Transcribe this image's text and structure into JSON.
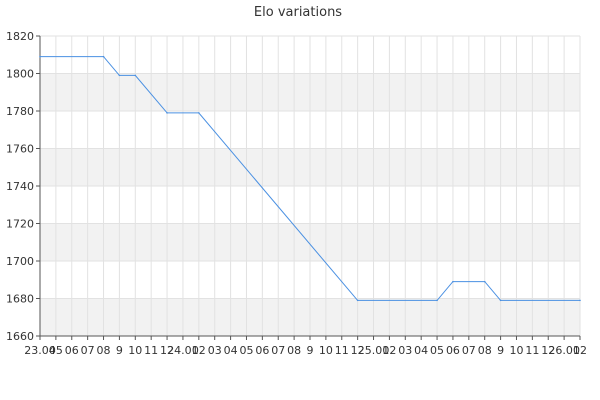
{
  "chart_data": {
    "type": "line",
    "title": "Elo variations",
    "xlabel": "",
    "ylabel": "",
    "ylim": [
      1660,
      1820
    ],
    "yticks": [
      1660,
      1680,
      1700,
      1720,
      1740,
      1760,
      1780,
      1800,
      1820
    ],
    "x_tick_labels": [
      "23.04",
      "05",
      "06",
      "07",
      "08",
      "9",
      "10",
      "11",
      "12",
      "24.01",
      "02",
      "03",
      "04",
      "05",
      "06",
      "07",
      "08",
      "9",
      "10",
      "11",
      "12",
      "25.01",
      "02",
      "03",
      "04",
      "05",
      "06",
      "07",
      "08",
      "9",
      "10",
      "11",
      "12",
      "26.01",
      "02"
    ],
    "grid": true,
    "legend": "none",
    "line_color": "#4a90e2",
    "band_color": "#f2f2f2",
    "series": [
      {
        "x_index": [
          0,
          4,
          5,
          6,
          8,
          10,
          20,
          25,
          26,
          28,
          29,
          34
        ],
        "values": [
          1809,
          1809,
          1799,
          1799,
          1779,
          1779,
          1679,
          1679,
          1689,
          1689,
          1679,
          1679
        ]
      }
    ]
  }
}
